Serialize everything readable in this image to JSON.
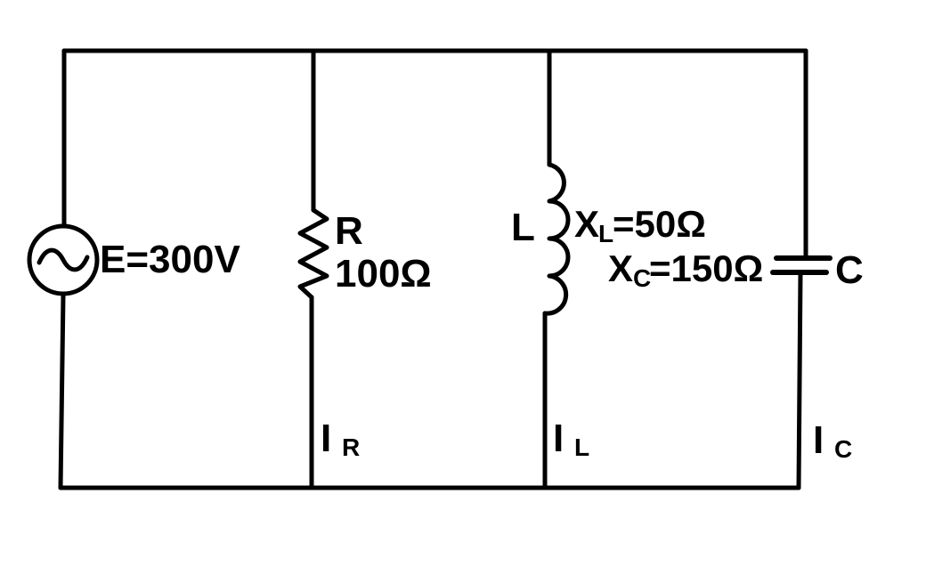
{
  "source": {
    "symbol": "ac-source-icon",
    "label": "E=300V"
  },
  "resistor": {
    "name": "R",
    "value": "100Ω",
    "current_main": "I",
    "current_sub": "R"
  },
  "inductor": {
    "name": "L",
    "reactance_main": "X",
    "reactance_sub": "L",
    "reactance_value": "=50Ω",
    "current_main": "I",
    "current_sub": "L"
  },
  "capacitor": {
    "name": "C",
    "reactance_main": "X",
    "reactance_sub": "C",
    "reactance_value": "=150Ω",
    "current_main": "I",
    "current_sub": "C"
  }
}
